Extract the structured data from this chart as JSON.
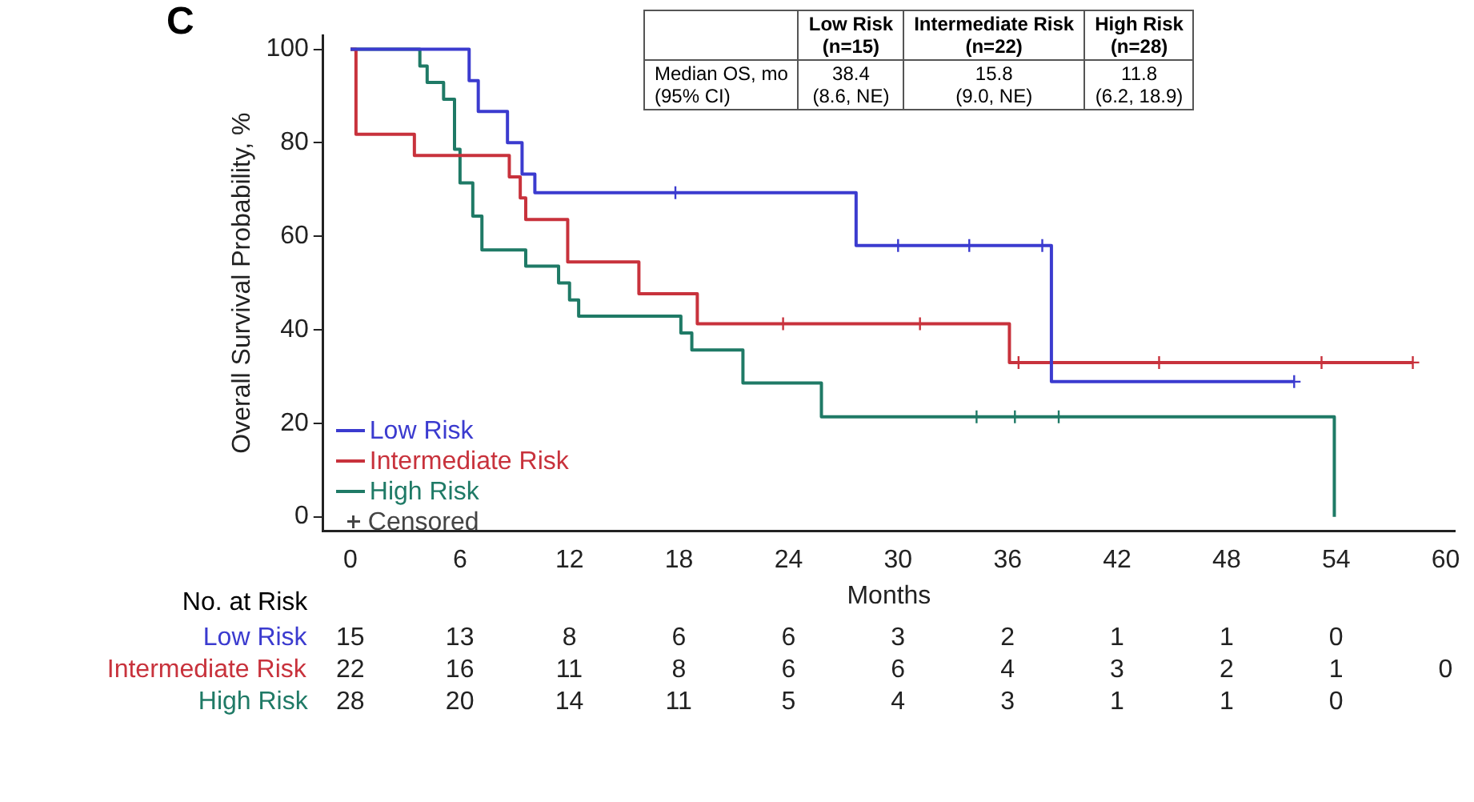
{
  "chart_data": {
    "type": "step",
    "xlabel": "Months",
    "ylabel": "Overall Survival Probability, %",
    "xlim": [
      -1.5,
      60.5
    ],
    "xticks": [
      0,
      6,
      12,
      18,
      24,
      30,
      36,
      42,
      48,
      54,
      60
    ],
    "ylim": [
      -3,
      103
    ],
    "yticks": [
      0,
      20,
      40,
      60,
      80,
      100
    ],
    "grid": false,
    "legend": "bottom left",
    "marker": "none",
    "line_style": "solid",
    "series": [
      {
        "name": "Low Risk",
        "color": "#3b3bcf",
        "x": [
          0,
          6.5,
          7.0,
          8.6,
          9.4,
          10.1,
          27.7,
          38.4,
          51.7
        ],
        "values": [
          100,
          93.3,
          86.7,
          80,
          73.3,
          69.3,
          58,
          28.9,
          28.9
        ]
      },
      {
        "name": "Intermediate Risk",
        "color": "#c8323c",
        "x": [
          0,
          0.3,
          3.5,
          8.7,
          9.3,
          9.6,
          11.9,
          15.8,
          19.0,
          36.1,
          58.2
        ],
        "values": [
          100,
          81.8,
          77.3,
          72.7,
          68.2,
          63.6,
          54.5,
          47.7,
          41.3,
          33,
          33
        ]
      },
      {
        "name": "High Risk",
        "color": "#1f7a66",
        "x": [
          0,
          3.8,
          4.2,
          5.1,
          5.7,
          6.0,
          6.7,
          7.2,
          9.6,
          11.4,
          12.0,
          12.5,
          18.1,
          18.7,
          21.5,
          25.8,
          53.9
        ],
        "values": [
          100,
          96.4,
          92.9,
          89.3,
          78.6,
          71.4,
          64.3,
          57.1,
          53.6,
          50,
          46.4,
          42.9,
          39.3,
          35.7,
          28.6,
          21.4,
          0
        ]
      },
      {
        "name": "Censored",
        "type": "scatter",
        "marker": "cross",
        "color": "#444444",
        "colors": [
          "#3b3bcf",
          "#3b3bcf",
          "#3b3bcf",
          "#3b3bcf",
          "#3b3bcf",
          "#c8323c",
          "#c8323c",
          "#c8323c",
          "#c8323c",
          "#c8323c",
          "#c8323c",
          "#1f7a66",
          "#1f7a66",
          "#1f7a66"
        ],
        "x": [
          17.8,
          30,
          33.9,
          37.9,
          51.7,
          23.7,
          31.2,
          36.6,
          44.3,
          53.2,
          58.2,
          34.3,
          36.4,
          38.8
        ],
        "values": [
          69.3,
          58,
          58,
          58,
          28.9,
          41.3,
          41.3,
          33,
          33,
          33,
          33,
          21.4,
          21.4,
          21.4
        ]
      }
    ],
    "annotations": [
      "C",
      "\tLow Risk\n(n=15)\tIntermediate Risk\n(n=22)\tHigh Risk\n(n=28)",
      "Median OS, mo\n(95% CI)\t38.4\n(8.6, NE)\t15.8\n(9.0, NE)\t11.8\n(6.2, 18.9)",
      "No. at Risk",
      "Low Risk\t15\t13\t8\t6\t6\t3\t2\t1\t1\t0",
      "Intermediate Risk\t22\t16\t11\t8\t6\t6\t4\t3\t2\t1\t0",
      "High Risk\t28\t20\t14\t11\t5\t4\t3\t1\t1\t0"
    ]
  }
}
